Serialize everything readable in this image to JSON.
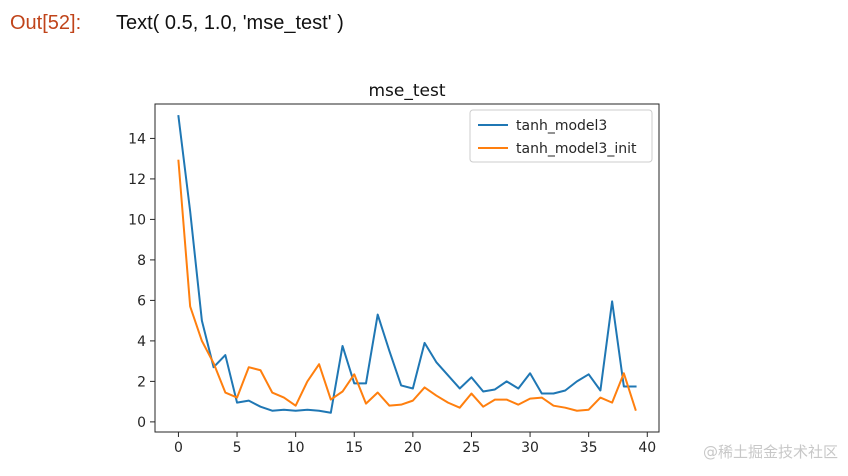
{
  "cell": {
    "prompt": "Out[52]:",
    "output_text": "Text( 0.5, 1.0, 'mse_test' )"
  },
  "watermark": "@稀土掘金技术社区",
  "colors": {
    "series_1": "#1f77b4",
    "series_2": "#ff7f0e",
    "axis": "#262626"
  },
  "chart_data": {
    "type": "line",
    "title": "mse_test",
    "xlabel": "",
    "ylabel": "",
    "xlim": [
      -2,
      41
    ],
    "ylim": [
      -0.5,
      15.7
    ],
    "xticks": [
      "0",
      "5",
      "10",
      "15",
      "20",
      "25",
      "30",
      "35",
      "40"
    ],
    "yticks": [
      "0",
      "2",
      "4",
      "6",
      "8",
      "10",
      "12",
      "14"
    ],
    "legend_position": "top-right",
    "x": [
      0,
      1,
      2,
      3,
      4,
      5,
      6,
      7,
      8,
      9,
      10,
      11,
      12,
      13,
      14,
      15,
      16,
      17,
      18,
      19,
      20,
      21,
      22,
      23,
      24,
      25,
      26,
      27,
      28,
      29,
      30,
      31,
      32,
      33,
      34,
      35,
      36,
      37,
      38,
      39
    ],
    "series": [
      {
        "name": "tanh_model3",
        "color": "#1f77b4",
        "values": [
          15.1,
          10.4,
          5.0,
          2.7,
          3.3,
          0.95,
          1.05,
          0.75,
          0.55,
          0.6,
          0.55,
          0.6,
          0.55,
          0.45,
          3.75,
          1.9,
          1.9,
          5.3,
          3.5,
          1.8,
          1.65,
          3.9,
          2.95,
          2.3,
          1.65,
          2.2,
          1.5,
          1.6,
          2.0,
          1.65,
          2.4,
          1.4,
          1.4,
          1.55,
          2.0,
          2.35,
          1.55,
          5.95,
          1.75,
          1.75
        ]
      },
      {
        "name": "tanh_model3_init",
        "color": "#ff7f0e",
        "values": [
          12.9,
          5.7,
          4.0,
          2.9,
          1.45,
          1.2,
          2.7,
          2.55,
          1.45,
          1.2,
          0.8,
          2.0,
          2.85,
          1.1,
          1.5,
          2.35,
          0.9,
          1.45,
          0.8,
          0.85,
          1.05,
          1.7,
          1.3,
          0.95,
          0.7,
          1.4,
          0.75,
          1.1,
          1.1,
          0.85,
          1.15,
          1.2,
          0.8,
          0.7,
          0.55,
          0.6,
          1.2,
          0.95,
          2.4,
          0.6
        ]
      }
    ]
  }
}
